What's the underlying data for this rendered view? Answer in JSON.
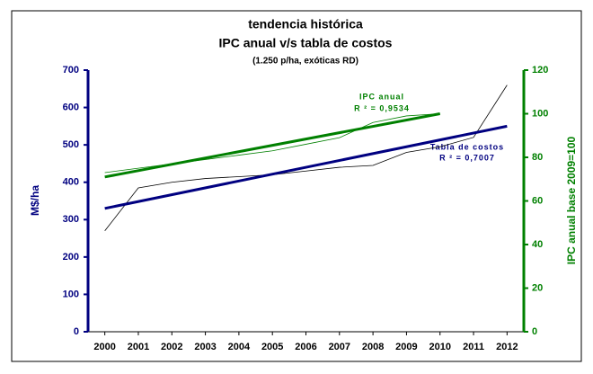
{
  "chart_data": {
    "type": "line",
    "title": "tendencia histórica",
    "subtitle": "IPC anual v/s tabla de costos",
    "note": "(1.250 p/ha, exóticas RD)",
    "y_label": "M$/ha",
    "y2_label": "IPC anual base 2009=100",
    "x": [
      2000,
      2001,
      2002,
      2003,
      2004,
      2005,
      2006,
      2007,
      2008,
      2009,
      2010,
      2011,
      2012
    ],
    "xlim": [
      1999.5,
      2012.5
    ],
    "xticks": [
      2000,
      2001,
      2002,
      2003,
      2004,
      2005,
      2006,
      2007,
      2008,
      2009,
      2010,
      2011,
      2012
    ],
    "ylim": [
      0,
      700
    ],
    "yticks": [
      0,
      100,
      200,
      300,
      400,
      500,
      600,
      700
    ],
    "y2lim": [
      0,
      120
    ],
    "y2ticks": [
      0,
      20,
      40,
      60,
      80,
      100,
      120
    ],
    "series": [
      {
        "color": "#000000",
        "width": 0.8,
        "values": [
          270,
          385,
          400,
          410,
          415,
          420,
          430,
          440,
          445,
          480,
          495,
          520,
          660
        ]
      },
      {
        "color": "#000080",
        "width": 3,
        "x": [
          2000,
          2012
        ],
        "values": [
          330,
          550
        ]
      },
      {
        "color": "#008000",
        "width": 0.8,
        "axis": "y2",
        "x": [
          2000,
          2001,
          2002,
          2003,
          2004,
          2005,
          2006,
          2007,
          2008,
          2009,
          2010
        ],
        "values": [
          73,
          75,
          77,
          79,
          81,
          83,
          86,
          89,
          96,
          99,
          100
        ]
      },
      {
        "color": "#008000",
        "width": 3,
        "axis": "y2",
        "x": [
          2000,
          2010
        ],
        "values": [
          71,
          100
        ]
      }
    ],
    "annotations": [
      "IPC anual",
      "R ² = 0,9534",
      "Tabla de costos",
      "R ² = 0,7007"
    ]
  }
}
